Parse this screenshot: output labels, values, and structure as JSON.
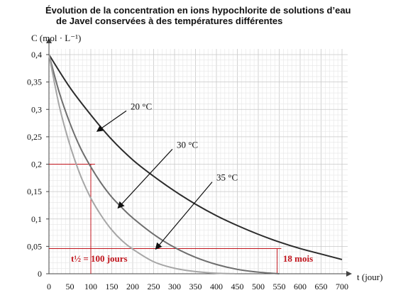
{
  "chart_data": {
    "type": "line",
    "title_lines": [
      "Évolution de la concentration en ions hypochlorite de solutions d’eau",
      "de Javel conservées à des températures différentes"
    ],
    "ylabel": "C (mol · L⁻¹)",
    "xlabel": "t (jour)",
    "xlim": [
      0,
      700
    ],
    "ylim": [
      0,
      0.4
    ],
    "xticks": [
      0,
      50,
      100,
      150,
      200,
      250,
      300,
      350,
      400,
      450,
      500,
      550,
      600,
      650,
      700
    ],
    "xtick_labels": [
      "0",
      "50",
      "100",
      "150",
      "200",
      "250",
      "300",
      "350",
      "400",
      "450",
      "500",
      "550",
      "600",
      "650",
      "700"
    ],
    "yticks": [
      0,
      0.05,
      0.1,
      0.15,
      0.2,
      0.25,
      0.3,
      0.35,
      0.4
    ],
    "ytick_labels": [
      "0",
      "0,05",
      "0,1",
      "0,15",
      "0,2",
      "0,25",
      "0,3",
      "0,35",
      "0,4"
    ],
    "grid": true,
    "series": [
      {
        "name": "20 °C",
        "color": "#2b2b2b",
        "x": [
          0,
          50,
          100,
          150,
          200,
          250,
          300,
          350,
          400,
          450,
          500,
          550,
          600,
          650,
          700
        ],
        "y": [
          0.4,
          0.34,
          0.29,
          0.245,
          0.208,
          0.178,
          0.151,
          0.127,
          0.106,
          0.088,
          0.072,
          0.058,
          0.046,
          0.036,
          0.026
        ]
      },
      {
        "name": "30 °C",
        "color": "#6e6e6e",
        "x": [
          0,
          25,
          50,
          75,
          100,
          125,
          150,
          175,
          200,
          250,
          300,
          350,
          400,
          450,
          500,
          550
        ],
        "y": [
          0.4,
          0.33,
          0.275,
          0.23,
          0.195,
          0.165,
          0.14,
          0.12,
          0.102,
          0.072,
          0.048,
          0.03,
          0.017,
          0.008,
          0.003,
          0.0
        ]
      },
      {
        "name": "35 °C",
        "color": "#a6a6a6",
        "x": [
          0,
          25,
          50,
          75,
          100,
          125,
          150,
          175,
          200,
          250,
          300,
          350,
          400,
          450
        ],
        "y": [
          0.4,
          0.305,
          0.235,
          0.18,
          0.138,
          0.106,
          0.08,
          0.06,
          0.045,
          0.022,
          0.01,
          0.004,
          0.001,
          0.0
        ]
      }
    ],
    "curve_labels": [
      {
        "text": "20 °C",
        "at": [
          195,
          0.3
        ],
        "arrow_to": [
          115,
          0.26
        ]
      },
      {
        "text": "30 °C",
        "at": [
          305,
          0.23
        ],
        "arrow_to": [
          165,
          0.12
        ]
      },
      {
        "text": "35 °C",
        "at": [
          400,
          0.17
        ],
        "arrow_to": [
          255,
          0.045
        ]
      }
    ],
    "annotations": [
      {
        "text": "t½ = 100 jours",
        "color": "#c0141c",
        "hline": [
          0,
          110,
          0.2
        ],
        "vline": [
          100,
          0,
          0.2
        ],
        "label_at": [
          120,
          0.022
        ]
      },
      {
        "text": "18 mois",
        "color": "#c0141c",
        "hline": [
          0,
          555,
          0.046
        ],
        "vline": [
          545,
          0,
          0.046
        ],
        "label_at": [
          595,
          0.022
        ]
      }
    ]
  }
}
